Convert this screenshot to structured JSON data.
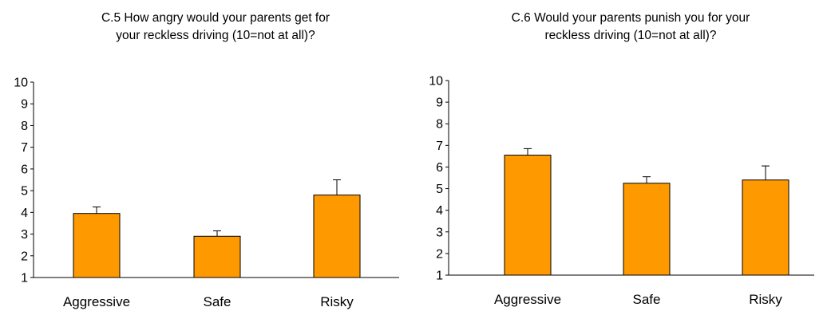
{
  "chart_data": [
    {
      "type": "bar",
      "title_line1": "C.5 How angry would your parents get for",
      "title_line2": "your reckless driving (10=not at all)?",
      "categories": [
        "Aggressive",
        "Safe",
        "Risky"
      ],
      "values": [
        3.95,
        2.9,
        4.8
      ],
      "error_upper": [
        4.25,
        3.15,
        5.5
      ],
      "ylim": [
        1,
        10
      ],
      "yticks": [
        "1",
        "2",
        "3",
        "4",
        "5",
        "6",
        "7",
        "8",
        "9",
        "10"
      ],
      "bar_color": "#FF9900",
      "grid": false,
      "legend": "none"
    },
    {
      "type": "bar",
      "title_line1": "C.6 Would your parents punish you for your",
      "title_line2": "reckless driving (10=not at all)?",
      "categories": [
        "Aggressive",
        "Safe",
        "Risky"
      ],
      "values": [
        6.55,
        5.25,
        5.4
      ],
      "error_upper": [
        6.85,
        5.55,
        6.05
      ],
      "ylim": [
        1,
        10
      ],
      "yticks": [
        "1",
        "2",
        "3",
        "4",
        "5",
        "6",
        "7",
        "8",
        "9",
        "10"
      ],
      "bar_color": "#FF9900",
      "grid": false,
      "legend": "none"
    }
  ]
}
